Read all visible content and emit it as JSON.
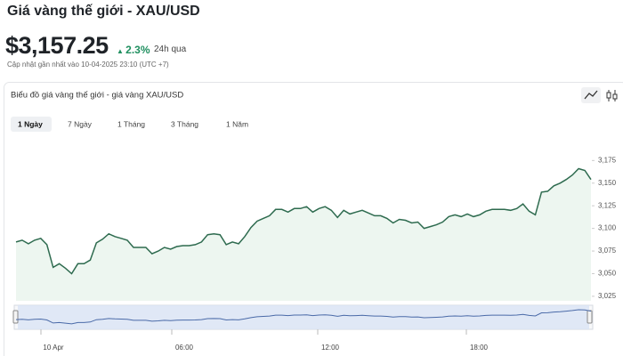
{
  "header": {
    "title": "Giá vàng thế giới - XAU/USD",
    "price": "$3,157.25",
    "change": "2.3%",
    "change_period": "24h qua",
    "updated": "Cập nhật gần nhất vào 10-04-2025 23:10 (UTC +7)"
  },
  "panel": {
    "title": "Biểu đồ giá vàng thế giới - giá vàng XAU/USD",
    "tabs": [
      "1 Ngày",
      "7 Ngày",
      "1 Tháng",
      "3 Tháng",
      "1 Năm"
    ],
    "active_tab": 0
  },
  "chart_data": {
    "type": "area",
    "color": "#2e6b4f",
    "fill": "#edf6f0",
    "values": [
      3085,
      3087,
      3083,
      3087,
      3089,
      3082,
      3057,
      3061,
      3056,
      3050,
      3061,
      3061,
      3065,
      3084,
      3088,
      3094,
      3091,
      3089,
      3087,
      3079,
      3079,
      3079,
      3072,
      3075,
      3079,
      3077,
      3080,
      3081,
      3081,
      3082,
      3085,
      3093,
      3094,
      3093,
      3082,
      3085,
      3083,
      3091,
      3101,
      3108,
      3111,
      3114,
      3121,
      3121,
      3118,
      3122,
      3122,
      3124,
      3118,
      3122,
      3124,
      3120,
      3112,
      3120,
      3116,
      3118,
      3120,
      3117,
      3114,
      3114,
      3111,
      3106,
      3110,
      3109,
      3106,
      3107,
      3100,
      3102,
      3104,
      3107,
      3113,
      3115,
      3113,
      3116,
      3113,
      3115,
      3119,
      3121,
      3121,
      3121,
      3120,
      3122,
      3127,
      3119,
      3115,
      3140,
      3141,
      3147,
      3150,
      3154,
      3159,
      3166,
      3164,
      3154
    ],
    "ylim": [
      3020,
      3195
    ],
    "yticks": [
      {
        "value": 3025,
        "label": "3,025"
      },
      {
        "value": 3050,
        "label": "3,050"
      },
      {
        "value": 3075,
        "label": "3,075"
      },
      {
        "value": 3100,
        "label": "3,100"
      },
      {
        "value": 3125,
        "label": "3,125"
      },
      {
        "value": 3150,
        "label": "3,150"
      },
      {
        "value": 3175,
        "label": "3,175"
      }
    ]
  },
  "navigator": {
    "labels": [
      "10 Apr",
      "06:00",
      "12:00",
      "18:00"
    ]
  }
}
